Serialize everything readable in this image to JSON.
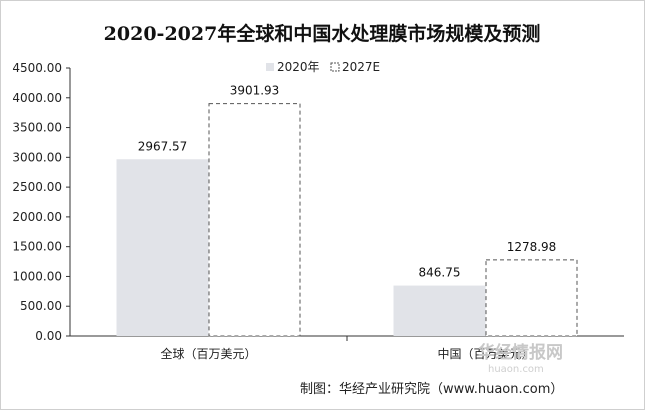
{
  "chart_data": {
    "type": "bar",
    "title": "2020-2027年全球和中国水处理膜市场规模及预测",
    "categories": [
      "全球（百万美元）",
      "中国（百万美元）"
    ],
    "series": [
      {
        "name": "2020年",
        "values": [
          2967.57,
          846.75
        ],
        "style": "filled",
        "color": "#e1e3e8"
      },
      {
        "name": "2027E",
        "values": [
          3901.93,
          1278.98
        ],
        "style": "dashed-outline",
        "color": "#555555"
      }
    ],
    "data_labels": [
      [
        "2967.57",
        "846.75"
      ],
      [
        "3901.93",
        "1278.98"
      ]
    ],
    "yticks": [
      "0.00",
      "500.00",
      "1000.00",
      "1500.00",
      "2000.00",
      "2500.00",
      "3000.00",
      "3500.00",
      "4000.00",
      "4500.00"
    ],
    "ylim": [
      0,
      4500
    ],
    "xlabel": "",
    "ylabel": "",
    "grid": false,
    "legend_position": "top-center"
  },
  "source_note": "制图：华经产业研究院（www.huaon.com）",
  "watermark": {
    "brand": "华经情报网",
    "domain": "huaon.com"
  }
}
